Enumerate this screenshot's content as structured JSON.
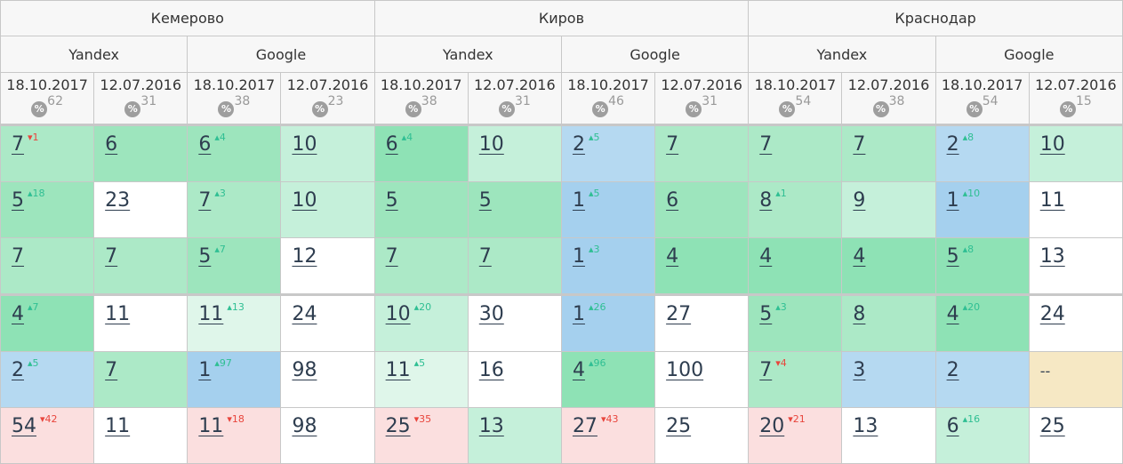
{
  "cities": [
    "Кемерово",
    "Киров",
    "Краснодар"
  ],
  "engines": [
    "Yandex",
    "Google",
    "Yandex",
    "Google",
    "Yandex",
    "Google"
  ],
  "dates": [
    {
      "date": "18.10.2017",
      "pct": "62"
    },
    {
      "date": "12.07.2016",
      "pct": "31"
    },
    {
      "date": "18.10.2017",
      "pct": "38"
    },
    {
      "date": "12.07.2016",
      "pct": "23"
    },
    {
      "date": "18.10.2017",
      "pct": "38"
    },
    {
      "date": "12.07.2016",
      "pct": "31"
    },
    {
      "date": "18.10.2017",
      "pct": "46"
    },
    {
      "date": "12.07.2016",
      "pct": "31"
    },
    {
      "date": "18.10.2017",
      "pct": "54"
    },
    {
      "date": "12.07.2016",
      "pct": "38"
    },
    {
      "date": "18.10.2017",
      "pct": "54"
    },
    {
      "date": "12.07.2016",
      "pct": "15"
    }
  ],
  "percent_icon_label": "%",
  "colors": {
    "g1": "#8ee2b5",
    "g2": "#9de5bd",
    "g3": "#ace9c7",
    "g4": "#c5f0da",
    "g5": "#dff6ea",
    "b1": "#a5d0ee",
    "b2": "#b5d9f1",
    "y": "#f6e8c4",
    "p": "#fbdfdf",
    "up": "#2fbf93",
    "down": "#e8453c"
  },
  "rows": [
    [
      {
        "v": "7",
        "d": "1",
        "dir": "down",
        "c": "g3"
      },
      {
        "v": "6",
        "c": "g2"
      },
      {
        "v": "6",
        "d": "4",
        "dir": "up",
        "c": "g2"
      },
      {
        "v": "10",
        "c": "g4"
      },
      {
        "v": "6",
        "d": "4",
        "dir": "up",
        "c": "g1"
      },
      {
        "v": "10",
        "c": "g4"
      },
      {
        "v": "2",
        "d": "5",
        "dir": "up",
        "c": "b2"
      },
      {
        "v": "7",
        "c": "g3"
      },
      {
        "v": "7",
        "c": "g3"
      },
      {
        "v": "7",
        "c": "g3"
      },
      {
        "v": "2",
        "d": "8",
        "dir": "up",
        "c": "b2"
      },
      {
        "v": "10",
        "c": "g4"
      }
    ],
    [
      {
        "v": "5",
        "d": "18",
        "dir": "up",
        "c": "g2"
      },
      {
        "v": "23",
        "c": "w"
      },
      {
        "v": "7",
        "d": "3",
        "dir": "up",
        "c": "g3"
      },
      {
        "v": "10",
        "c": "g4"
      },
      {
        "v": "5",
        "c": "g2"
      },
      {
        "v": "5",
        "c": "g2"
      },
      {
        "v": "1",
        "d": "5",
        "dir": "up",
        "c": "b1"
      },
      {
        "v": "6",
        "c": "g2"
      },
      {
        "v": "8",
        "d": "1",
        "dir": "up",
        "c": "g3"
      },
      {
        "v": "9",
        "c": "g4"
      },
      {
        "v": "1",
        "d": "10",
        "dir": "up",
        "c": "b1"
      },
      {
        "v": "11",
        "c": "w"
      }
    ],
    [
      {
        "v": "7",
        "c": "g3"
      },
      {
        "v": "7",
        "c": "g3"
      },
      {
        "v": "5",
        "d": "7",
        "dir": "up",
        "c": "g2"
      },
      {
        "v": "12",
        "c": "w"
      },
      {
        "v": "7",
        "c": "g3"
      },
      {
        "v": "7",
        "c": "g3"
      },
      {
        "v": "1",
        "d": "3",
        "dir": "up",
        "c": "b1"
      },
      {
        "v": "4",
        "c": "g1"
      },
      {
        "v": "4",
        "c": "g1"
      },
      {
        "v": "4",
        "c": "g1"
      },
      {
        "v": "5",
        "d": "8",
        "dir": "up",
        "c": "g1"
      },
      {
        "v": "13",
        "c": "w"
      }
    ],
    [
      {
        "v": "4",
        "d": "7",
        "dir": "up",
        "c": "g1"
      },
      {
        "v": "11",
        "c": "w"
      },
      {
        "v": "11",
        "d": "13",
        "dir": "up",
        "c": "g5"
      },
      {
        "v": "24",
        "c": "w"
      },
      {
        "v": "10",
        "d": "20",
        "dir": "up",
        "c": "g4"
      },
      {
        "v": "30",
        "c": "w"
      },
      {
        "v": "1",
        "d": "26",
        "dir": "up",
        "c": "b1"
      },
      {
        "v": "27",
        "c": "w"
      },
      {
        "v": "5",
        "d": "3",
        "dir": "up",
        "c": "g2"
      },
      {
        "v": "8",
        "c": "g3"
      },
      {
        "v": "4",
        "d": "20",
        "dir": "up",
        "c": "g1"
      },
      {
        "v": "24",
        "c": "w"
      }
    ],
    [
      {
        "v": "2",
        "d": "5",
        "dir": "up",
        "c": "b2"
      },
      {
        "v": "7",
        "c": "g3"
      },
      {
        "v": "1",
        "d": "97",
        "dir": "up",
        "c": "b1"
      },
      {
        "v": "98",
        "c": "w"
      },
      {
        "v": "11",
        "d": "5",
        "dir": "up",
        "c": "g5"
      },
      {
        "v": "16",
        "c": "w"
      },
      {
        "v": "4",
        "d": "96",
        "dir": "up",
        "c": "g1"
      },
      {
        "v": "100",
        "c": "w"
      },
      {
        "v": "7",
        "d": "4",
        "dir": "down",
        "c": "g3"
      },
      {
        "v": "3",
        "c": "b2"
      },
      {
        "v": "2",
        "c": "b2"
      },
      {
        "v": "--",
        "c": "y",
        "nolink": true
      }
    ],
    [
      {
        "v": "54",
        "d": "42",
        "dir": "down",
        "c": "p"
      },
      {
        "v": "11",
        "c": "w"
      },
      {
        "v": "11",
        "d": "18",
        "dir": "down",
        "c": "p"
      },
      {
        "v": "98",
        "c": "w"
      },
      {
        "v": "25",
        "d": "35",
        "dir": "down",
        "c": "p"
      },
      {
        "v": "13",
        "c": "g4"
      },
      {
        "v": "27",
        "d": "43",
        "dir": "down",
        "c": "p"
      },
      {
        "v": "25",
        "c": "w"
      },
      {
        "v": "20",
        "d": "21",
        "dir": "down",
        "c": "p"
      },
      {
        "v": "13",
        "c": "w"
      },
      {
        "v": "6",
        "d": "16",
        "dir": "up",
        "c": "g4"
      },
      {
        "v": "25",
        "c": "w"
      }
    ]
  ]
}
